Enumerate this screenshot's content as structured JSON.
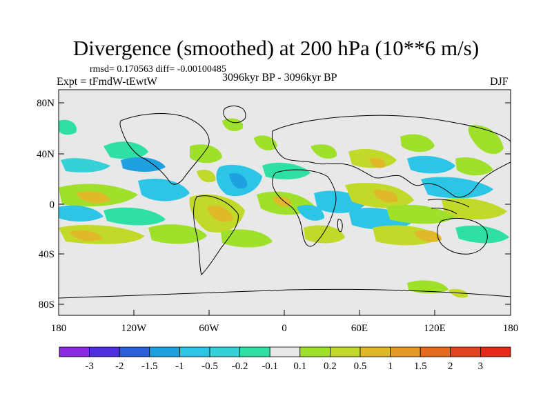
{
  "title": "Divergence (smoothed) at 200 hPa (10**6 m/s)",
  "stats": "rmsd= 0.170563  diff= -0.00100485",
  "experiment": "Expt = tFmdW-tEwtW",
  "period": "3096kyr BP - 3096kyr BP",
  "season": "DJF",
  "axes": {
    "x_ticks": [
      "180",
      "120W",
      "60W",
      "0",
      "60E",
      "120E",
      "180"
    ],
    "y_ticks": [
      "80N",
      "40N",
      "0",
      "40S",
      "80S"
    ]
  },
  "colorbar": {
    "labels": [
      "-3",
      "-2",
      "-1.5",
      "-1",
      "-0.5",
      "-0.2",
      "-0.1",
      "0.1",
      "0.2",
      "0.5",
      "1",
      "1.5",
      "2",
      "3"
    ],
    "colors": [
      "#8a2be2",
      "#4f2fe0",
      "#2a5fd9",
      "#1fa0e0",
      "#2cc5e6",
      "#35d0d8",
      "#2fe0a6",
      "#e8e8e8",
      "#9ee02a",
      "#c3d92a",
      "#e0b92a",
      "#e59a27",
      "#e66a1d",
      "#e3431c",
      "#e52a1a"
    ]
  },
  "colors": {
    "background": "#e8e8e8",
    "outline": "#000000"
  }
}
